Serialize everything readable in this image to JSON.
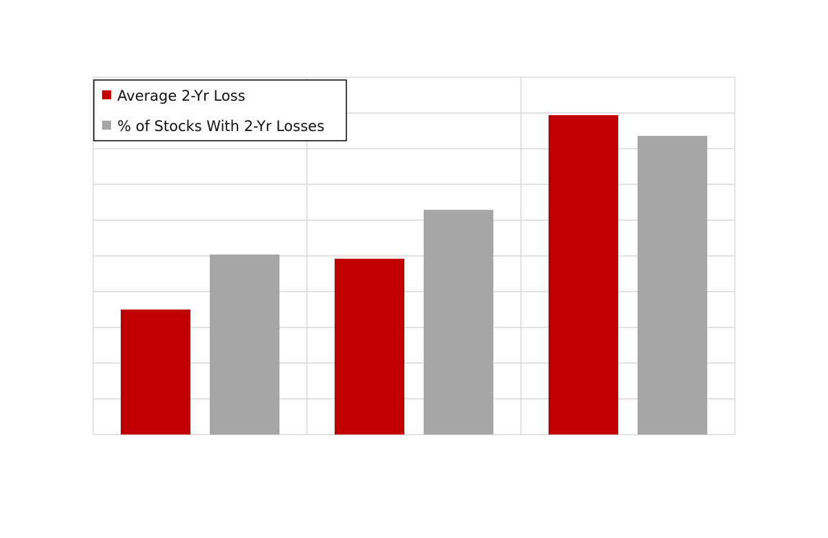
{
  "chart_data": {
    "type": "bar",
    "categories": [
      "",
      "",
      ""
    ],
    "series": [
      {
        "name": "Average 2-Yr Loss",
        "color": "#c00000",
        "values": [
          3.5,
          4.92,
          8.94
        ]
      },
      {
        "name": "% of Stocks With 2-Yr Losses",
        "color": "#a6a6a6",
        "values": [
          5.04,
          6.29,
          8.36
        ]
      }
    ],
    "title": "",
    "xlabel": "",
    "ylabel": "",
    "ylim": [
      0,
      10
    ],
    "grid": true,
    "legend": "top-left"
  }
}
